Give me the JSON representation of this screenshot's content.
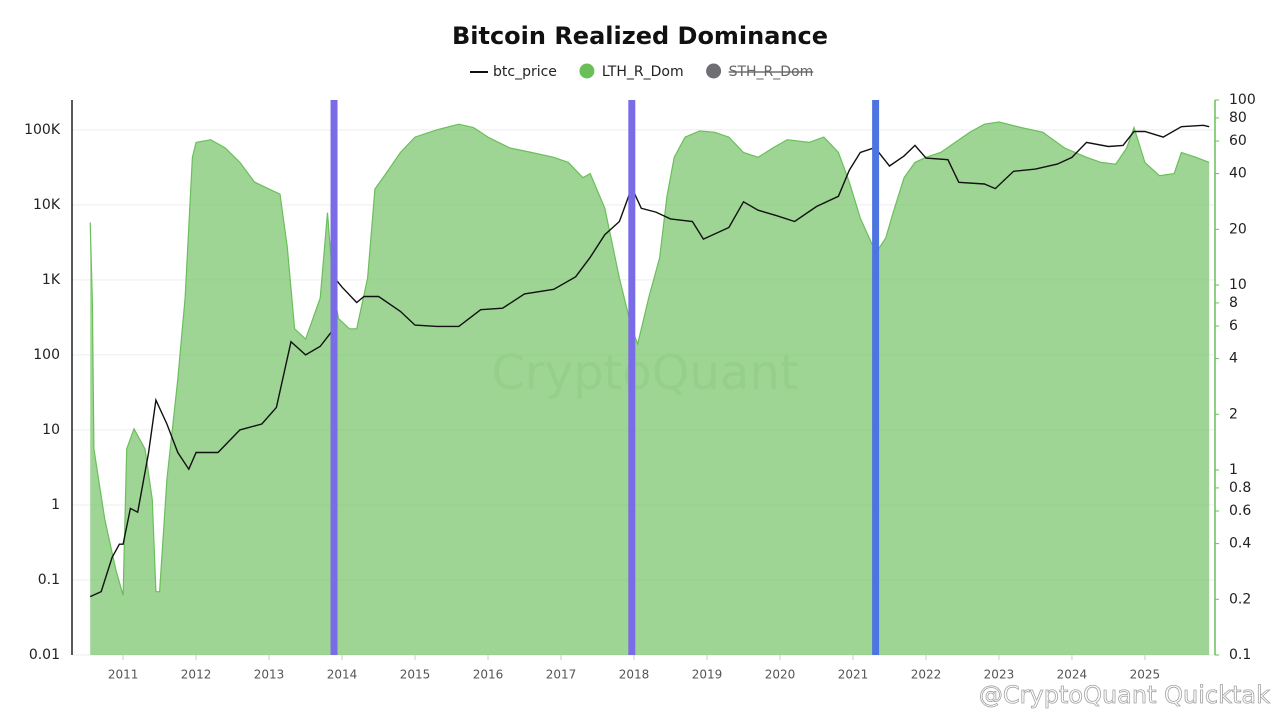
{
  "chart_data": {
    "type": "line",
    "title": "Bitcoin Realized Dominance",
    "watermark": "CryptoQuant",
    "overlay_text": "@CryptoQuant Quicktak",
    "xlim": [
      2010.3,
      2025.96
    ],
    "xticks": [
      2011,
      2012,
      2013,
      2014,
      2015,
      2016,
      2017,
      2018,
      2019,
      2020,
      2021,
      2022,
      2023,
      2024,
      2025
    ],
    "ylim": [
      0.01,
      250000
    ],
    "yscale": "log",
    "yticks": [
      0.01,
      0.1,
      1,
      10,
      100,
      {
        "value": 1000,
        "label": "1K"
      },
      {
        "value": 10000,
        "label": "10K"
      },
      {
        "value": 100000,
        "label": "100K"
      }
    ],
    "y2lim": [
      0.1,
      100
    ],
    "y2scale": "log",
    "y2ticks": [
      0.1,
      0.2,
      0.4,
      0.6,
      0.8,
      1,
      2,
      4,
      6,
      8,
      10,
      20,
      40,
      60,
      80,
      100
    ],
    "grid": true,
    "series": [
      {
        "name": "btc_price",
        "color": "#111111",
        "x": [
          2010.55,
          2010.7,
          2010.85,
          2010.95,
          2011.0,
          2011.1,
          2011.2,
          2011.35,
          2011.45,
          2011.6,
          2011.75,
          2011.9,
          2012.0,
          2012.3,
          2012.6,
          2012.9,
          2013.1,
          2013.3,
          2013.5,
          2013.7,
          2013.85,
          2013.92,
          2014.0,
          2014.2,
          2014.3,
          2014.5,
          2014.8,
          2015.0,
          2015.3,
          2015.6,
          2015.9,
          2016.2,
          2016.5,
          2016.9,
          2017.2,
          2017.4,
          2017.6,
          2017.8,
          2017.97,
          2018.1,
          2018.3,
          2018.5,
          2018.8,
          2018.95,
          2019.3,
          2019.5,
          2019.7,
          2019.95,
          2020.2,
          2020.5,
          2020.8,
          2020.95,
          2021.1,
          2021.3,
          2021.5,
          2021.7,
          2021.85,
          2022.0,
          2022.3,
          2022.45,
          2022.8,
          2022.95,
          2023.2,
          2023.5,
          2023.8,
          2024.0,
          2024.2,
          2024.5,
          2024.7,
          2024.85,
          2025.0,
          2025.25,
          2025.5,
          2025.8,
          2025.88
        ],
        "values": [
          0.06,
          0.07,
          0.2,
          0.3,
          0.3,
          0.9,
          0.8,
          5,
          25,
          12,
          5,
          3,
          5,
          5,
          10,
          12,
          20,
          150,
          100,
          130,
          200,
          1000,
          800,
          500,
          600,
          600,
          380,
          250,
          240,
          240,
          400,
          420,
          650,
          750,
          1100,
          2000,
          4000,
          6000,
          17000,
          9000,
          8000,
          6500,
          6000,
          3500,
          5000,
          11000,
          8500,
          7200,
          6000,
          9500,
          13000,
          29000,
          50000,
          58000,
          33000,
          45000,
          62000,
          42000,
          40000,
          20000,
          19000,
          16500,
          28000,
          30000,
          35000,
          43000,
          68000,
          60000,
          62000,
          95000,
          95000,
          80000,
          110000,
          115000,
          110000
        ]
      },
      {
        "name": "LTH_R_Dom",
        "color": "#6abf5a",
        "axis": "y2",
        "area": true,
        "x": [
          2010.55,
          2010.58,
          2010.6,
          2010.75,
          2010.9,
          2011.0,
          2011.05,
          2011.15,
          2011.3,
          2011.4,
          2011.45,
          2011.5,
          2011.6,
          2011.75,
          2011.85,
          2011.95,
          2012.0,
          2012.2,
          2012.4,
          2012.6,
          2012.8,
          2013.0,
          2013.15,
          2013.25,
          2013.35,
          2013.5,
          2013.7,
          2013.8,
          2013.88,
          2013.95,
          2014.1,
          2014.2,
          2014.35,
          2014.45,
          2014.6,
          2014.8,
          2015.0,
          2015.3,
          2015.6,
          2015.8,
          2016.0,
          2016.3,
          2016.6,
          2016.9,
          2017.1,
          2017.3,
          2017.4,
          2017.6,
          2017.8,
          2017.97,
          2018.05,
          2018.2,
          2018.35,
          2018.45,
          2018.55,
          2018.7,
          2018.9,
          2019.1,
          2019.3,
          2019.5,
          2019.7,
          2019.9,
          2020.1,
          2020.4,
          2020.6,
          2020.8,
          2020.95,
          2021.1,
          2021.25,
          2021.32,
          2021.45,
          2021.55,
          2021.7,
          2021.85,
          2022.0,
          2022.2,
          2022.4,
          2022.6,
          2022.8,
          2023.0,
          2023.3,
          2023.6,
          2023.9,
          2024.2,
          2024.4,
          2024.6,
          2024.75,
          2024.85,
          2025.0,
          2025.2,
          2025.4,
          2025.5,
          2025.7,
          2025.88
        ],
        "values": [
          21.8,
          8,
          1.3,
          0.54,
          0.29,
          0.21,
          1.3,
          1.67,
          1.3,
          0.69,
          0.22,
          0.22,
          0.89,
          3.1,
          8.5,
          49,
          59,
          61,
          55,
          46,
          36,
          33,
          31,
          16,
          5.8,
          5.1,
          8.5,
          24.6,
          9.6,
          6.6,
          5.8,
          5.8,
          10.9,
          33,
          40,
          52,
          63,
          69,
          74,
          71,
          63,
          55,
          52,
          49,
          46,
          38,
          40,
          26,
          10.9,
          5.8,
          4.8,
          8.5,
          14,
          30,
          49,
          63,
          68,
          67,
          63,
          52,
          49,
          55,
          61,
          59,
          63,
          52,
          36,
          23,
          17,
          15,
          18,
          24.6,
          38,
          46,
          49,
          52,
          59,
          67,
          74,
          76,
          71,
          67,
          55,
          49,
          46,
          45,
          55,
          71,
          46,
          39,
          40,
          52,
          49,
          46
        ]
      },
      {
        "name": "STH_R_Dom",
        "color": "#6e6e73",
        "hidden": true
      }
    ],
    "vertical_lines": [
      {
        "x": 2013.89,
        "color": "#7a6be6"
      },
      {
        "x": 2017.97,
        "color": "#7a6be6"
      },
      {
        "x": 2021.31,
        "color": "#4d74e0"
      }
    ]
  }
}
